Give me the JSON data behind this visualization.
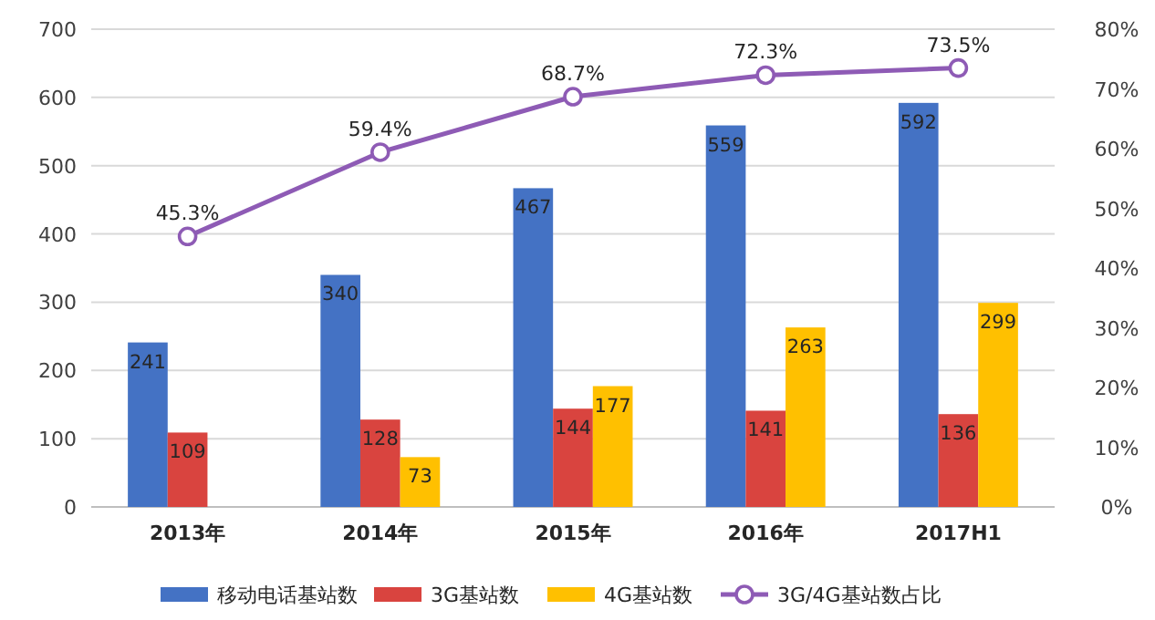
{
  "chart_data": {
    "type": "bar",
    "categories": [
      "2013年",
      "2014年",
      "2015年",
      "2016年",
      "2017H1"
    ],
    "ylim": [
      0,
      700
    ],
    "yticks": [
      0,
      100,
      200,
      300,
      400,
      500,
      600,
      700
    ],
    "y2lim": [
      0,
      80
    ],
    "y2ticks": [
      {
        "value": 0,
        "label": "0%"
      },
      {
        "value": 10,
        "label": "10%"
      },
      {
        "value": 20,
        "label": "20%"
      },
      {
        "value": 30,
        "label": "30%"
      },
      {
        "value": 40,
        "label": "40%"
      },
      {
        "value": 50,
        "label": "50%"
      },
      {
        "value": 60,
        "label": "60%"
      },
      {
        "value": 70,
        "label": "70%"
      },
      {
        "value": 80,
        "label": "80%"
      }
    ],
    "grid": "y",
    "legend": "bottom",
    "data_labels": true,
    "series": [
      {
        "name": "移动电话基站数",
        "color": "#4472c4",
        "values": [
          241,
          340,
          467,
          559,
          592
        ]
      },
      {
        "name": "3G基站数",
        "color": "#d9443f",
        "values": [
          109,
          128,
          144,
          141,
          136
        ]
      },
      {
        "name": "4G基站数",
        "color": "#ffc000",
        "values": [
          null,
          73,
          177,
          263,
          299
        ]
      },
      {
        "name": "3G/4G基站数占比",
        "type": "line",
        "axis": "y2",
        "marker": "circle",
        "color": "#8e5bb5",
        "values": [
          45.3,
          59.4,
          68.7,
          72.3,
          73.5
        ],
        "value_labels": [
          "45.3%",
          "59.4%",
          "68.7%",
          "72.3%",
          "73.5%"
        ]
      }
    ]
  }
}
